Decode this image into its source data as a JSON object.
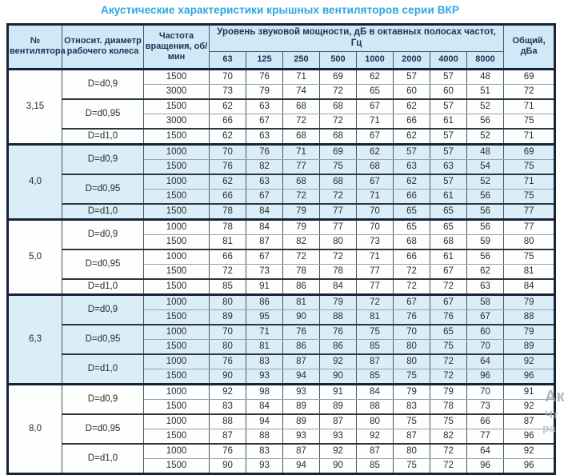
{
  "page": {
    "title": "Акустические характеристики крышных вентиляторов серии ВКР"
  },
  "table": {
    "header": {
      "fan_no": "№ вентилятора",
      "diameter": "Относит. диаметр рабочего колеса",
      "speed": "Частота вращения, об/мин",
      "spl_group": "Уровень звуковой мощности, дБ в октавных полосах частот, Гц",
      "bands": [
        "63",
        "125",
        "250",
        "500",
        "1000",
        "2000",
        "4000",
        "8000"
      ],
      "total": "Общий, дБа"
    },
    "sections": [
      {
        "fan": "3,15",
        "shaded": false,
        "groups": [
          {
            "diameter": "D=d0,9",
            "rows": [
              {
                "rpm": "1500",
                "values": [
                  "70",
                  "76",
                  "71",
                  "69",
                  "62",
                  "57",
                  "57",
                  "48"
                ],
                "total": "69"
              },
              {
                "rpm": "3000",
                "values": [
                  "73",
                  "79",
                  "74",
                  "72",
                  "65",
                  "60",
                  "60",
                  "51"
                ],
                "total": "72"
              }
            ]
          },
          {
            "diameter": "D=d0,95",
            "rows": [
              {
                "rpm": "1500",
                "values": [
                  "62",
                  "63",
                  "68",
                  "68",
                  "67",
                  "62",
                  "57",
                  "52"
                ],
                "total": "71"
              },
              {
                "rpm": "3000",
                "values": [
                  "66",
                  "67",
                  "72",
                  "72",
                  "71",
                  "66",
                  "61",
                  "56"
                ],
                "total": "75"
              }
            ]
          },
          {
            "diameter": "D=d1,0",
            "rows": [
              {
                "rpm": "1500",
                "values": [
                  "62",
                  "63",
                  "68",
                  "68",
                  "67",
                  "62",
                  "57",
                  "52"
                ],
                "total": "71"
              }
            ]
          }
        ]
      },
      {
        "fan": "4,0",
        "shaded": true,
        "groups": [
          {
            "diameter": "D=d0,9",
            "rows": [
              {
                "rpm": "1000",
                "values": [
                  "70",
                  "76",
                  "71",
                  "69",
                  "62",
                  "57",
                  "57",
                  "48"
                ],
                "total": "69"
              },
              {
                "rpm": "1500",
                "values": [
                  "76",
                  "82",
                  "77",
                  "75",
                  "68",
                  "63",
                  "63",
                  "54"
                ],
                "total": "75"
              }
            ]
          },
          {
            "diameter": "D=d0,95",
            "rows": [
              {
                "rpm": "1000",
                "values": [
                  "62",
                  "63",
                  "68",
                  "68",
                  "67",
                  "62",
                  "57",
                  "52"
                ],
                "total": "71"
              },
              {
                "rpm": "1500",
                "values": [
                  "66",
                  "67",
                  "72",
                  "72",
                  "71",
                  "66",
                  "61",
                  "56"
                ],
                "total": "75"
              }
            ]
          },
          {
            "diameter": "D=d1,0",
            "rows": [
              {
                "rpm": "1500",
                "values": [
                  "78",
                  "84",
                  "79",
                  "77",
                  "70",
                  "65",
                  "65",
                  "56"
                ],
                "total": "77"
              }
            ]
          }
        ]
      },
      {
        "fan": "5,0",
        "shaded": false,
        "groups": [
          {
            "diameter": "D=d0,9",
            "rows": [
              {
                "rpm": "1000",
                "values": [
                  "78",
                  "84",
                  "79",
                  "77",
                  "70",
                  "65",
                  "65",
                  "56"
                ],
                "total": "77"
              },
              {
                "rpm": "1500",
                "values": [
                  "81",
                  "87",
                  "82",
                  "80",
                  "73",
                  "68",
                  "68",
                  "59"
                ],
                "total": "80"
              }
            ]
          },
          {
            "diameter": "D=d0,95",
            "rows": [
              {
                "rpm": "1000",
                "values": [
                  "66",
                  "67",
                  "72",
                  "72",
                  "71",
                  "66",
                  "61",
                  "56"
                ],
                "total": "75"
              },
              {
                "rpm": "1500",
                "values": [
                  "72",
                  "73",
                  "78",
                  "78",
                  "77",
                  "72",
                  "67",
                  "62"
                ],
                "total": "81"
              }
            ]
          },
          {
            "diameter": "D=d1,0",
            "rows": [
              {
                "rpm": "1500",
                "values": [
                  "85",
                  "91",
                  "86",
                  "84",
                  "77",
                  "72",
                  "72",
                  "63"
                ],
                "total": "84"
              }
            ]
          }
        ]
      },
      {
        "fan": "6,3",
        "shaded": true,
        "groups": [
          {
            "diameter": "D=d0,9",
            "rows": [
              {
                "rpm": "1000",
                "values": [
                  "80",
                  "86",
                  "81",
                  "79",
                  "72",
                  "67",
                  "67",
                  "58"
                ],
                "total": "79"
              },
              {
                "rpm": "1500",
                "values": [
                  "89",
                  "95",
                  "90",
                  "88",
                  "81",
                  "76",
                  "76",
                  "67"
                ],
                "total": "88"
              }
            ]
          },
          {
            "diameter": "D=d0,95",
            "rows": [
              {
                "rpm": "1000",
                "values": [
                  "70",
                  "71",
                  "76",
                  "76",
                  "75",
                  "70",
                  "65",
                  "60"
                ],
                "total": "79"
              },
              {
                "rpm": "1500",
                "values": [
                  "80",
                  "81",
                  "86",
                  "86",
                  "85",
                  "80",
                  "75",
                  "70"
                ],
                "total": "89"
              }
            ]
          },
          {
            "diameter": "D=d1,0",
            "rows": [
              {
                "rpm": "1000",
                "values": [
                  "76",
                  "83",
                  "87",
                  "92",
                  "87",
                  "80",
                  "72",
                  "64"
                ],
                "total": "92"
              },
              {
                "rpm": "1500",
                "values": [
                  "90",
                  "93",
                  "94",
                  "90",
                  "85",
                  "75",
                  "72",
                  "96"
                ],
                "total": "96"
              }
            ]
          }
        ]
      },
      {
        "fan": "8,0",
        "shaded": false,
        "groups": [
          {
            "diameter": "D=d0,9",
            "rows": [
              {
                "rpm": "1000",
                "values": [
                  "92",
                  "98",
                  "93",
                  "91",
                  "84",
                  "79",
                  "79",
                  "70"
                ],
                "total": "91"
              },
              {
                "rpm": "1500",
                "values": [
                  "83",
                  "84",
                  "89",
                  "89",
                  "88",
                  "83",
                  "78",
                  "73"
                ],
                "total": "92"
              }
            ]
          },
          {
            "diameter": "D=d0,95",
            "rows": [
              {
                "rpm": "1000",
                "values": [
                  "88",
                  "94",
                  "89",
                  "87",
                  "80",
                  "75",
                  "75",
                  "66"
                ],
                "total": "87"
              },
              {
                "rpm": "1500",
                "values": [
                  "87",
                  "88",
                  "93",
                  "93",
                  "92",
                  "87",
                  "82",
                  "77"
                ],
                "total": "96"
              }
            ]
          },
          {
            "diameter": "D=d1,0",
            "rows": [
              {
                "rpm": "1000",
                "values": [
                  "76",
                  "83",
                  "87",
                  "92",
                  "87",
                  "80",
                  "72",
                  "64"
                ],
                "total": "92"
              },
              {
                "rpm": "1500",
                "values": [
                  "90",
                  "93",
                  "94",
                  "90",
                  "85",
                  "75",
                  "72",
                  "96"
                ],
                "total": "96"
              }
            ]
          }
        ]
      }
    ]
  },
  "watermark": {
    "fragments": [
      "Ак",
      "Чт",
      "ра"
    ]
  },
  "colors": {
    "title_accent": "#2aa7e0",
    "header_bg": "#cfe9f6",
    "shaded_row_bg": "#daeef8",
    "outer_border": "#1b2238"
  }
}
